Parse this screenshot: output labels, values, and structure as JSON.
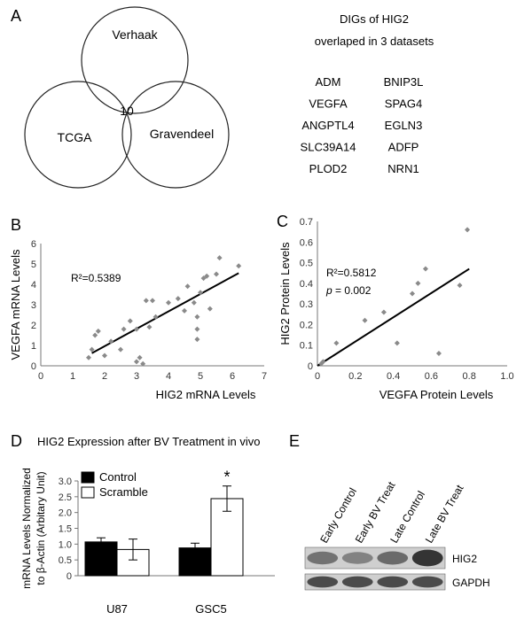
{
  "panel_a": {
    "letter": "A",
    "venn": {
      "sets": [
        "Verhaak",
        "TCGA",
        "Gravendeel"
      ],
      "intersection": "10"
    },
    "genes_title_line1": "DIGs of HIG2",
    "genes_title_line2": "overlaped in 3 datasets",
    "genes": [
      [
        "ADM",
        "BNIP3L"
      ],
      [
        "VEGFA",
        "SPAG4"
      ],
      [
        "ANGPTL4",
        "EGLN3"
      ],
      [
        "SLC39A14",
        "ADFP"
      ],
      [
        "PLOD2",
        "NRN1"
      ]
    ]
  },
  "panel_b": {
    "letter": "B"
  },
  "panel_c": {
    "letter": "C"
  },
  "panel_d": {
    "letter": "D"
  },
  "panel_e": {
    "letter": "E",
    "lanes": [
      "Early Control",
      "Early BV Treat",
      "Late Control",
      "Late BV Treat"
    ],
    "rows": [
      {
        "label": "HIG2",
        "intensity": [
          0.55,
          0.45,
          0.6,
          0.95
        ]
      },
      {
        "label": "GAPDH",
        "intensity": [
          0.8,
          0.8,
          0.8,
          0.8
        ]
      }
    ]
  },
  "chart_data": [
    {
      "type": "scatter",
      "panel": "B",
      "xlabel": "HIG2 mRNA Levels",
      "ylabel": "VEGFA mRNA Levels",
      "xlim": [
        0,
        7
      ],
      "ylim": [
        0,
        6
      ],
      "xticks": [
        0,
        1,
        2,
        3,
        4,
        5,
        6,
        7
      ],
      "yticks": [
        0,
        1,
        2,
        3,
        4,
        5,
        6
      ],
      "annotation": "R²=0.5389",
      "points": [
        [
          1.5,
          0.4
        ],
        [
          1.6,
          0.8
        ],
        [
          1.7,
          1.5
        ],
        [
          1.8,
          1.7
        ],
        [
          2.0,
          0.5
        ],
        [
          2.2,
          1.2
        ],
        [
          2.5,
          0.8
        ],
        [
          2.6,
          1.8
        ],
        [
          2.8,
          2.2
        ],
        [
          3.0,
          1.8
        ],
        [
          3.0,
          0.2
        ],
        [
          3.1,
          0.4
        ],
        [
          3.2,
          0.1
        ],
        [
          3.3,
          3.2
        ],
        [
          3.4,
          1.9
        ],
        [
          3.5,
          3.2
        ],
        [
          3.6,
          2.4
        ],
        [
          4.0,
          3.1
        ],
        [
          4.3,
          3.3
        ],
        [
          4.5,
          2.7
        ],
        [
          4.6,
          3.9
        ],
        [
          4.8,
          3.1
        ],
        [
          4.9,
          1.8
        ],
        [
          4.9,
          2.4
        ],
        [
          4.9,
          1.3
        ],
        [
          5.0,
          3.6
        ],
        [
          5.1,
          4.3
        ],
        [
          5.2,
          4.4
        ],
        [
          5.3,
          2.8
        ],
        [
          5.5,
          4.5
        ],
        [
          5.6,
          5.3
        ],
        [
          6.2,
          4.9
        ]
      ],
      "trendline": [
        [
          1.6,
          0.62
        ],
        [
          6.2,
          4.55
        ]
      ]
    },
    {
      "type": "scatter",
      "panel": "C",
      "xlabel": "VEGFA Protein Levels",
      "ylabel": "HIG2 Protein Levels",
      "xlim": [
        0,
        1.0
      ],
      "ylim": [
        0,
        0.7
      ],
      "xticks": [
        0,
        0.2,
        0.4,
        0.6,
        0.8,
        1.0
      ],
      "xtick_labels": [
        "0",
        "0.2",
        "0.4",
        "0.6",
        "0.8",
        "1.0"
      ],
      "yticks": [
        0,
        0.1,
        0.2,
        0.3,
        0.4,
        0.5,
        0.6,
        0.7
      ],
      "ytick_labels": [
        "0",
        "0.1",
        "0.2",
        "0.3",
        "0.4",
        "0.5",
        "0.6",
        "0.7"
      ],
      "annotation": "R²=0.5812",
      "annotation2_italic": "p",
      "annotation2_rest": " = 0.002",
      "points": [
        [
          0.02,
          0.01
        ],
        [
          0.03,
          0.02
        ],
        [
          0.1,
          0.11
        ],
        [
          0.25,
          0.22
        ],
        [
          0.35,
          0.26
        ],
        [
          0.42,
          0.11
        ],
        [
          0.5,
          0.35
        ],
        [
          0.53,
          0.4
        ],
        [
          0.57,
          0.47
        ],
        [
          0.64,
          0.06
        ],
        [
          0.75,
          0.39
        ],
        [
          0.79,
          0.66
        ]
      ],
      "trendline": [
        [
          0.0,
          0.0
        ],
        [
          0.8,
          0.47
        ]
      ]
    },
    {
      "type": "bar",
      "panel": "D",
      "title": "HIG2 Expression after BV Treatment in vivo",
      "ylabel_line1": "mRNA Levels Normalized",
      "ylabel_line2": "to β-Actin (Arbitary Unit)",
      "categories": [
        "U87",
        "GSC5"
      ],
      "ylim": [
        0,
        3.0
      ],
      "yticks": [
        0,
        0.5,
        1.0,
        1.5,
        2.0,
        2.5,
        3.0
      ],
      "ytick_labels": [
        "0",
        "0.5",
        "1.0",
        "1.5",
        "2.0",
        "2.5",
        "3.0"
      ],
      "series": [
        {
          "name": "Control",
          "values": [
            1.07,
            0.88
          ],
          "errors": [
            0.13,
            0.15
          ],
          "color": "#000000"
        },
        {
          "name": "Scramble",
          "values": [
            0.83,
            2.44
          ],
          "errors": [
            0.33,
            0.4
          ],
          "color": "#ffffff"
        }
      ],
      "significance": [
        {
          "category": "GSC5",
          "series": "Scramble",
          "mark": "*"
        }
      ]
    }
  ]
}
